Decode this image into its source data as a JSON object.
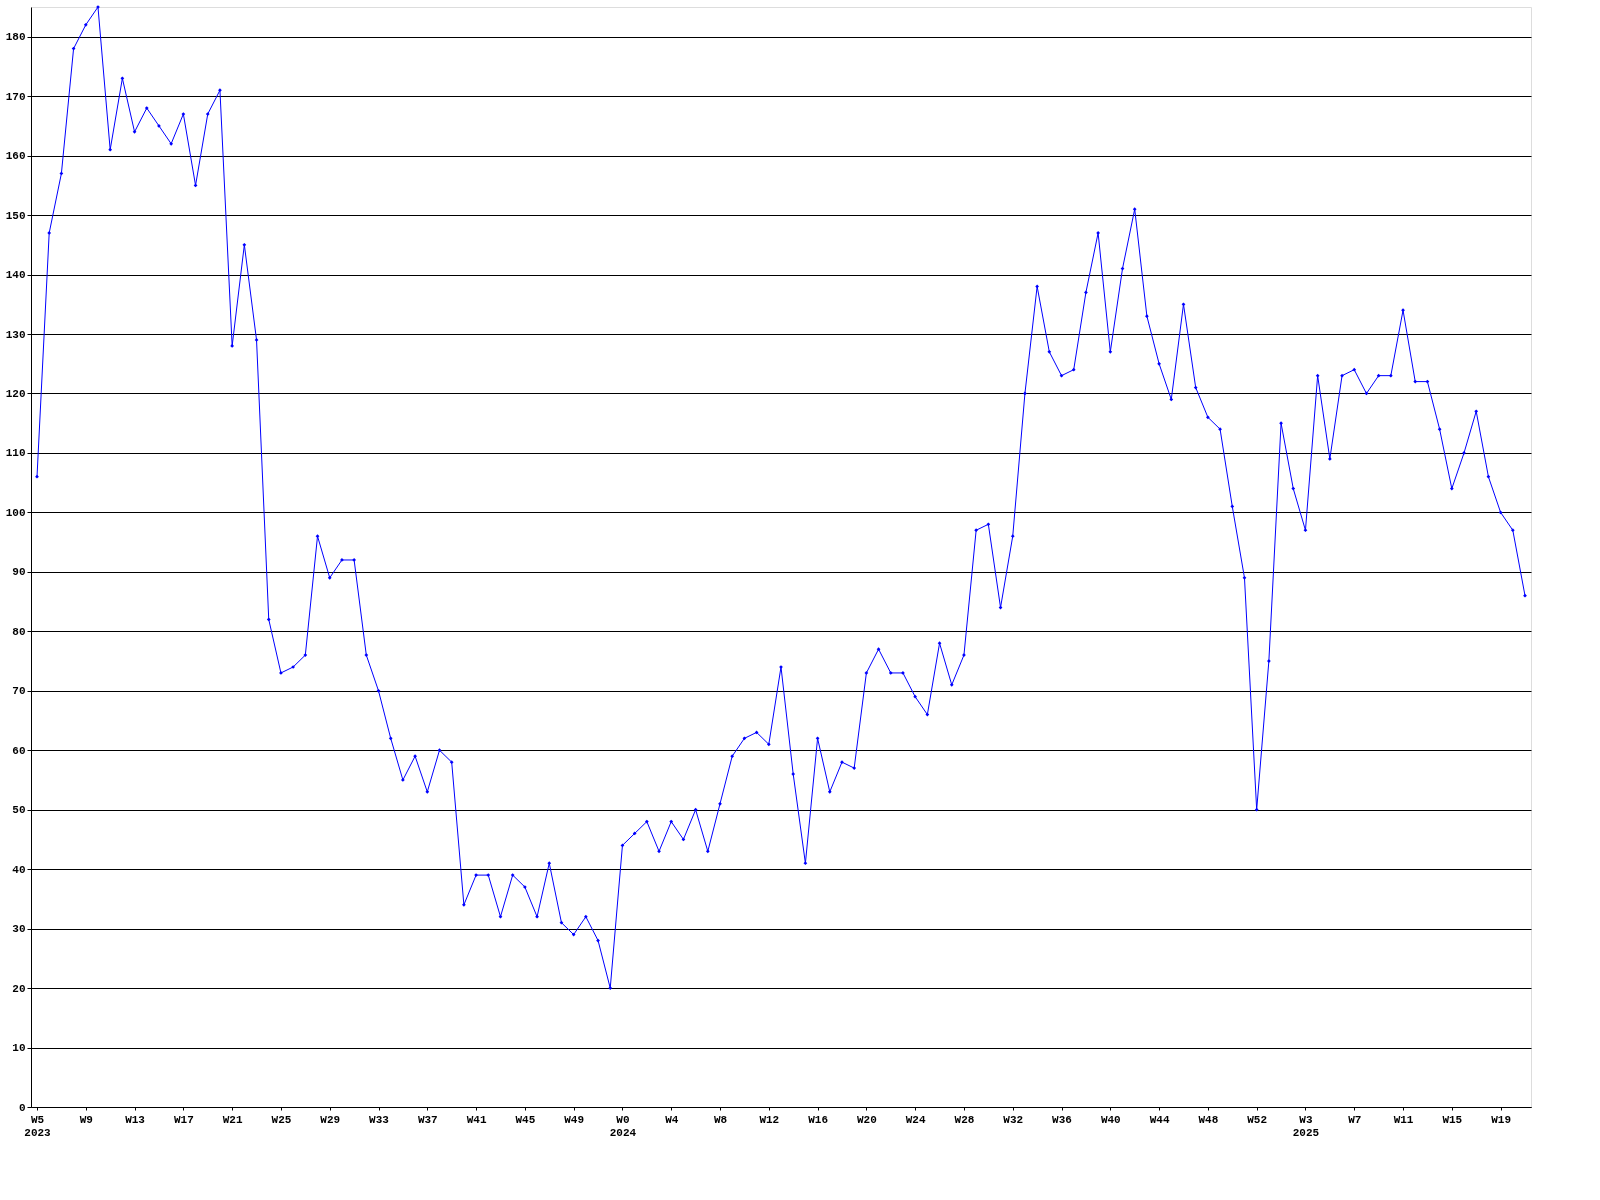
{
  "chart_data": {
    "type": "line",
    "categories": [
      "W5\n2023",
      null,
      null,
      null,
      "W9",
      null,
      null,
      null,
      "W13",
      null,
      null,
      null,
      "W17",
      null,
      null,
      null,
      "W21",
      null,
      null,
      null,
      "W25",
      null,
      null,
      null,
      "W29",
      null,
      null,
      null,
      "W33",
      null,
      null,
      null,
      "W37",
      null,
      null,
      null,
      "W41",
      null,
      null,
      null,
      "W45",
      null,
      null,
      null,
      "W49",
      null,
      null,
      null,
      "W0\n2024",
      null,
      null,
      null,
      "W4",
      null,
      null,
      null,
      "W8",
      null,
      null,
      null,
      "W12",
      null,
      null,
      null,
      "W16",
      null,
      null,
      null,
      "W20",
      null,
      null,
      null,
      "W24",
      null,
      null,
      null,
      "W28",
      null,
      null,
      null,
      "W32",
      null,
      null,
      null,
      "W36",
      null,
      null,
      null,
      "W40",
      null,
      null,
      null,
      "W44",
      null,
      null,
      null,
      "W48",
      null,
      null,
      null,
      "W52",
      null,
      null,
      null,
      "W3\n2025",
      null,
      null,
      null,
      "W7",
      null,
      null,
      null,
      "W11",
      null,
      null,
      null,
      "W15",
      null,
      null,
      null,
      "W19",
      null,
      null
    ],
    "series": [
      {
        "color": "#0000ff",
        "values": [
          106,
          147,
          157,
          178,
          182,
          185,
          161,
          173,
          164,
          168,
          165,
          162,
          167,
          155,
          167,
          171,
          128,
          145,
          129,
          82,
          73,
          74,
          76,
          96,
          89,
          92,
          92,
          76,
          70,
          62,
          55,
          59,
          53,
          60,
          58,
          34,
          39,
          39,
          32,
          39,
          37,
          32,
          41,
          31,
          29,
          32,
          28,
          20,
          44,
          46,
          48,
          43,
          48,
          45,
          50,
          43,
          51,
          59,
          62,
          63,
          61,
          74,
          56,
          41,
          62,
          53,
          58,
          57,
          73,
          77,
          73,
          73,
          69,
          66,
          78,
          71,
          76,
          97,
          98,
          84,
          96,
          120,
          138,
          127,
          123,
          124,
          137,
          147,
          127,
          141,
          151,
          133,
          125,
          119,
          135,
          121,
          116,
          114,
          101,
          89,
          50,
          75,
          115,
          104,
          97,
          123,
          109,
          123,
          124,
          120,
          123,
          123,
          134,
          122,
          122,
          114,
          104,
          110,
          117,
          106,
          100,
          97,
          86
        ]
      }
    ],
    "ylim": [
      0,
      185
    ],
    "yticks": [
      0,
      10,
      20,
      30,
      40,
      50,
      60,
      70,
      80,
      90,
      100,
      110,
      120,
      130,
      140,
      150,
      160,
      170,
      180
    ],
    "grid": "y",
    "marker": "diamond",
    "line_style": "solid"
  }
}
